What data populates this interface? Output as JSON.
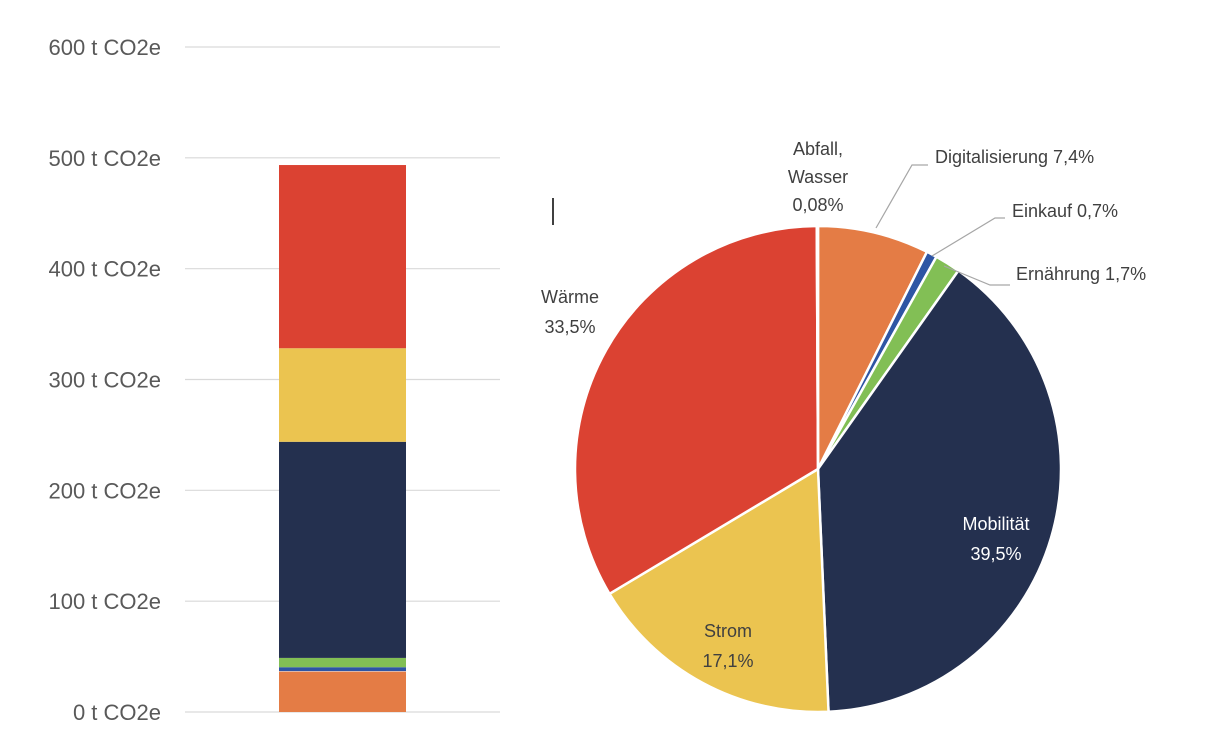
{
  "chart_data": [
    {
      "type": "bar",
      "stacked": true,
      "ylim": [
        0,
        600
      ],
      "tick_values": [
        0,
        100,
        200,
        300,
        400,
        500,
        600
      ],
      "tick_labels": [
        "0 t CO2e",
        "100 t CO2e",
        "200 t CO2e",
        "300 t CO2e",
        "400 t CO2e",
        "500 t CO2e",
        "600 t CO2e"
      ],
      "grid": true,
      "segments": [
        {
          "category": "Digitalisierung",
          "value": 36.5,
          "color": "#E47C45"
        },
        {
          "category": "Abfall, Wasser",
          "value": 0.4,
          "color": "#FFFFFF"
        },
        {
          "category": "Einkauf",
          "value": 3.5,
          "color": "#2E55A4"
        },
        {
          "category": "Ernährung",
          "value": 8.4,
          "color": "#82BF55"
        },
        {
          "category": "Mobilität",
          "value": 195.0,
          "color": "#24304F"
        },
        {
          "category": "Strom",
          "value": 84.4,
          "color": "#EBC450"
        },
        {
          "category": "Wärme",
          "value": 165.3,
          "color": "#DB4232"
        }
      ]
    },
    {
      "type": "pie",
      "slices": [
        {
          "label": "Digitalisierung 7,4%",
          "value": 7.4,
          "color": "#E47C45"
        },
        {
          "label": "Einkauf 0,7%",
          "value": 0.7,
          "color": "#2E55A4"
        },
        {
          "label": "Ernährung 1,7%",
          "value": 1.7,
          "color": "#82BF55"
        },
        {
          "label": "Mobilität 39,5%",
          "name": "Mobilität",
          "pct": "39,5%",
          "value": 39.5,
          "color": "#24304F"
        },
        {
          "label": "Strom 17,1%",
          "name": "Strom",
          "pct": "17,1%",
          "value": 17.1,
          "color": "#EBC450"
        },
        {
          "label": "Wärme 33,5%",
          "name": "Wärme",
          "pct": "33,5%",
          "value": 33.5,
          "color": "#DB4232"
        },
        {
          "label": "Abfall, Wasser 0,08%",
          "line1": "Abfall,",
          "line2": "Wasser",
          "pct": "0,08%",
          "value": 0.08,
          "color": "#FFFFFF"
        }
      ]
    }
  ]
}
